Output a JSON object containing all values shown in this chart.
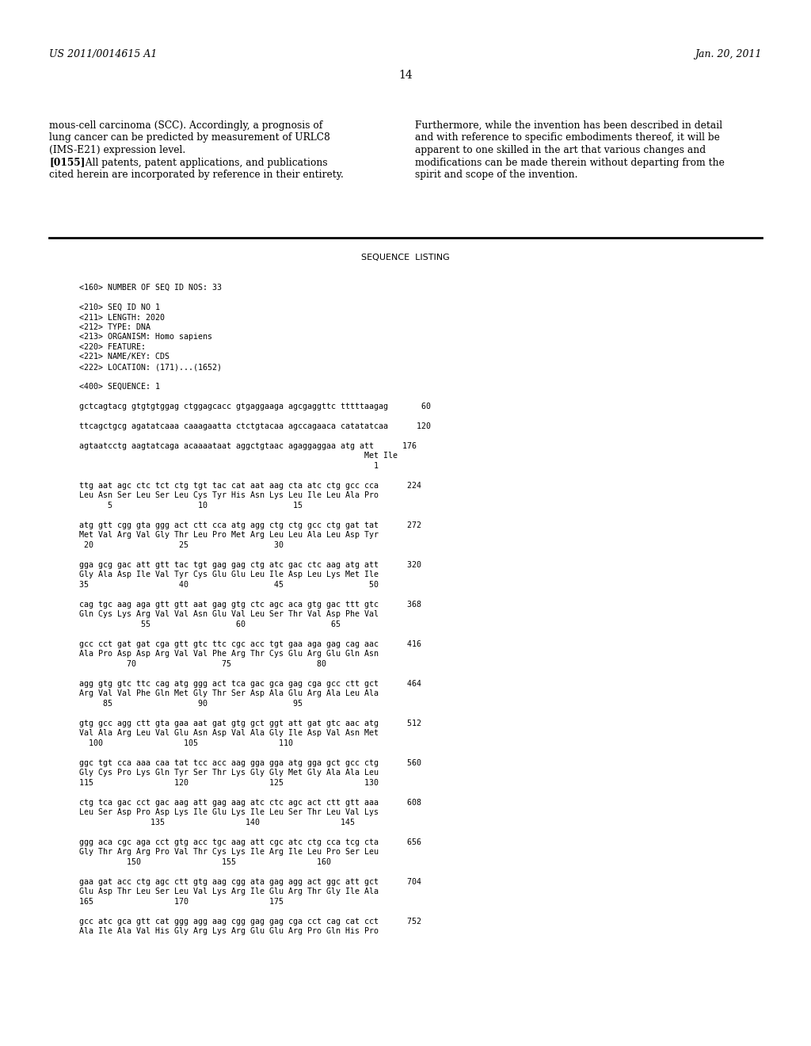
{
  "background_color": "#ffffff",
  "header_left": "US 2011/0014615 A1",
  "header_right": "Jan. 20, 2011",
  "page_number": "14",
  "left_lines": [
    "mous-cell carcinoma (SCC). Accordingly, a prognosis of",
    "lung cancer can be predicted by measurement of URLC8",
    "(IMS-E21) expression level.",
    "[0155]  All patents, patent applications, and publications",
    "cited herein are incorporated by reference in their entirety."
  ],
  "right_lines": [
    "Furthermore, while the invention has been described in detail",
    "and with reference to specific embodiments thereof, it will be",
    "apparent to one skilled in the art that various changes and",
    "modifications can be made therein without departing from the",
    "spirit and scope of the invention."
  ],
  "section_title": "SEQUENCE  LISTING",
  "seq_lines": [
    "<160> NUMBER OF SEQ ID NOS: 33",
    "",
    "<210> SEQ ID NO 1",
    "<211> LENGTH: 2020",
    "<212> TYPE: DNA",
    "<213> ORGANISM: Homo sapiens",
    "<220> FEATURE:",
    "<221> NAME/KEY: CDS",
    "<222> LOCATION: (171)...(1652)",
    "",
    "<400> SEQUENCE: 1",
    "",
    "gctcagtacg gtgtgtggag ctggagcacc gtgaggaaga agcgaggttc tttttaagag       60",
    "",
    "ttcagctgcg agatatcaaa caaagaatta ctctgtacaa agccagaaca catatatcaa      120",
    "",
    "agtaatcctg aagtatcaga acaaaataat aggctgtaac agaggaggaa atg att      176",
    "                                                            Met Ile",
    "                                                              1",
    "",
    "ttg aat agc ctc tct ctg tgt tac cat aat aag cta atc ctg gcc cca      224",
    "Leu Asn Ser Leu Ser Leu Cys Tyr His Asn Lys Leu Ile Leu Ala Pro",
    "      5                  10                  15",
    "",
    "atg gtt cgg gta ggg act ctt cca atg agg ctg ctg gcc ctg gat tat      272",
    "Met Val Arg Val Gly Thr Leu Pro Met Arg Leu Leu Ala Leu Asp Tyr",
    " 20                  25                  30",
    "",
    "gga gcg gac att gtt tac tgt gag gag ctg atc gac ctc aag atg att      320",
    "Gly Ala Asp Ile Val Tyr Cys Glu Glu Leu Ile Asp Leu Lys Met Ile",
    "35                   40                  45                  50",
    "",
    "cag tgc aag aga gtt gtt aat gag gtg ctc agc aca gtg gac ttt gtc      368",
    "Gln Cys Lys Arg Val Val Asn Glu Val Leu Ser Thr Val Asp Phe Val",
    "             55                  60                  65",
    "",
    "gcc cct gat gat cga gtt gtc ttc cgc acc tgt gaa aga gag cag aac      416",
    "Ala Pro Asp Asp Arg Val Val Phe Arg Thr Cys Glu Arg Glu Gln Asn",
    "          70                  75                  80",
    "",
    "agg gtg gtc ttc cag atg ggg act tca gac gca gag cga gcc ctt gct      464",
    "Arg Val Val Phe Gln Met Gly Thr Ser Asp Ala Glu Arg Ala Leu Ala",
    "     85                  90                  95",
    "",
    "gtg gcc agg ctt gta gaa aat gat gtg gct ggt att gat gtc aac atg      512",
    "Val Ala Arg Leu Val Glu Asn Asp Val Ala Gly Ile Asp Val Asn Met",
    "  100                 105                 110",
    "",
    "ggc tgt cca aaa caa tat tcc acc aag gga gga atg gga gct gcc ctg      560",
    "Gly Cys Pro Lys Gln Tyr Ser Thr Lys Gly Gly Met Gly Ala Ala Leu",
    "115                 120                 125                 130",
    "",
    "ctg tca gac cct gac aag att gag aag atc ctc agc act ctt gtt aaa      608",
    "Leu Ser Asp Pro Asp Lys Ile Glu Lys Ile Leu Ser Thr Leu Val Lys",
    "               135                 140                 145",
    "",
    "ggg aca cgc aga cct gtg acc tgc aag att cgc atc ctg cca tcg cta      656",
    "Gly Thr Arg Arg Pro Val Thr Cys Lys Ile Arg Ile Leu Pro Ser Leu",
    "          150                 155                 160",
    "",
    "gaa gat acc ctg agc ctt gtg aag cgg ata gag agg act ggc att gct      704",
    "Glu Asp Thr Leu Ser Leu Val Lys Arg Ile Glu Arg Thr Gly Ile Ala",
    "165                 170                 175",
    "",
    "gcc atc gca gtt cat ggg agg aag cgg gag gag cga cct cag cat cct      752",
    "Ala Ile Ala Val His Gly Arg Lys Arg Glu Glu Arg Pro Gln His Pro"
  ]
}
